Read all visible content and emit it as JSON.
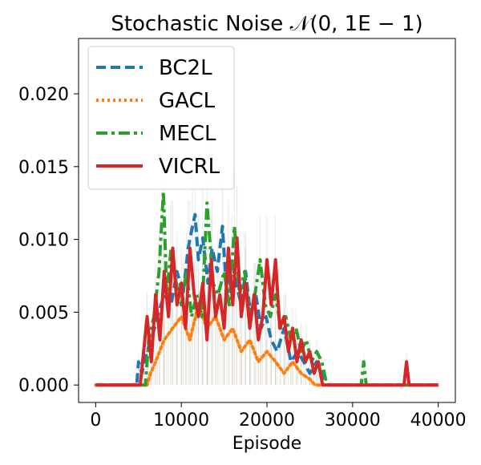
{
  "chart_data": {
    "type": "line",
    "title": "Stochastic Noise 𝒩(0, 1E − 1)",
    "xlabel": "Episode",
    "ylabel": "",
    "xlim": [
      -2000,
      42000
    ],
    "ylim": [
      -0.0012,
      0.0238
    ],
    "x_ticks": [
      0,
      10000,
      20000,
      30000,
      40000
    ],
    "x_tick_labels": [
      "0",
      "10000",
      "20000",
      "30000",
      "40000"
    ],
    "y_ticks": [
      0.0,
      0.005,
      0.01,
      0.015,
      0.02
    ],
    "y_tick_labels": [
      "0.000",
      "0.005",
      "0.010",
      "0.015",
      "0.020"
    ],
    "legend_position": "top-left",
    "series": [
      {
        "name": "BC2L",
        "color": "#1f77b4",
        "style": "dashed",
        "x": [
          0,
          4800,
          5000,
          5400,
          6000,
          6500,
          7200,
          8000,
          8800,
          9500,
          10200,
          10800,
          11300,
          11600,
          12000,
          12500,
          13100,
          13600,
          14200,
          14800,
          15300,
          15900,
          16400,
          17000,
          17500,
          18100,
          18700,
          19300,
          19900,
          20500,
          21200,
          22000,
          22800,
          23600,
          24300,
          25000,
          25800,
          26500,
          27000,
          40000
        ],
        "values": [
          0,
          0,
          0.0016,
          0.0008,
          0.0023,
          0.0031,
          0.0047,
          0.0062,
          0.0055,
          0.0078,
          0.0062,
          0.0094,
          0.0109,
          0.0117,
          0.0086,
          0.0101,
          0.007,
          0.0094,
          0.0078,
          0.0109,
          0.0062,
          0.0086,
          0.007,
          0.0055,
          0.0078,
          0.0047,
          0.0062,
          0.0039,
          0.0047,
          0.0031,
          0.0023,
          0.0039,
          0.0016,
          0.0023,
          0.0016,
          0.0008,
          0.0016,
          0.0008,
          0,
          0
        ]
      },
      {
        "name": "GACL",
        "color": "#ff7f0e",
        "style": "dotted",
        "x": [
          0,
          6000,
          6400,
          7000,
          8000,
          9000,
          10000,
          11000,
          12000,
          13000,
          14000,
          15000,
          16000,
          17000,
          18000,
          19000,
          20000,
          21000,
          22000,
          23000,
          24000,
          25000,
          25600,
          40000
        ],
        "values": [
          0,
          0,
          0.0008,
          0.0016,
          0.0031,
          0.0039,
          0.0047,
          0.0031,
          0.0055,
          0.0039,
          0.0047,
          0.0031,
          0.0039,
          0.0023,
          0.0031,
          0.0016,
          0.0023,
          0.0016,
          0.0008,
          0.0016,
          0.0008,
          0.0004,
          0,
          0
        ]
      },
      {
        "name": "MECL",
        "color": "#2ca02c",
        "style": "dashdot",
        "x": [
          0,
          5800,
          6200,
          6800,
          7400,
          7900,
          8300,
          8800,
          9400,
          10000,
          10600,
          11200,
          11800,
          12400,
          13000,
          13700,
          14300,
          15000,
          15600,
          16200,
          16800,
          17400,
          18000,
          18600,
          19200,
          19800,
          20400,
          21000,
          21600,
          22200,
          22800,
          23400,
          24000,
          24600,
          25200,
          25800,
          26400,
          27000,
          31000,
          31300,
          31600,
          40000
        ],
        "values": [
          0,
          0,
          0.0031,
          0.0047,
          0.0078,
          0.0133,
          0.0062,
          0.0094,
          0.007,
          0.0055,
          0.0078,
          0.0047,
          0.0062,
          0.0047,
          0.0125,
          0.007,
          0.0062,
          0.0078,
          0.0055,
          0.0109,
          0.0062,
          0.0078,
          0.0047,
          0.0062,
          0.0086,
          0.0055,
          0.0047,
          0.0062,
          0.0039,
          0.0047,
          0.0031,
          0.0039,
          0.0023,
          0.0031,
          0.0016,
          0.0023,
          0.0016,
          0,
          0,
          0.0016,
          0,
          0
        ]
      },
      {
        "name": "VICRL",
        "color": "#d62728",
        "style": "solid",
        "x": [
          0,
          5200,
          5600,
          6000,
          6500,
          7000,
          7500,
          8000,
          8500,
          9000,
          9500,
          10000,
          10500,
          11000,
          11500,
          12000,
          12500,
          13000,
          13500,
          14000,
          14500,
          15000,
          15500,
          16000,
          16500,
          17000,
          17500,
          18000,
          18500,
          19000,
          19500,
          20000,
          20500,
          21000,
          21500,
          22000,
          22500,
          23000,
          23500,
          24000,
          24500,
          25000,
          25500,
          26000,
          26500,
          27000,
          36000,
          36300,
          36600,
          40000
        ],
        "values": [
          0,
          0,
          0.0023,
          0.0047,
          0.0016,
          0.0062,
          0.0031,
          0.0078,
          0.0047,
          0.0094,
          0.0055,
          0.007,
          0.0039,
          0.0094,
          0.0062,
          0.0047,
          0.007,
          0.0031,
          0.0086,
          0.0047,
          0.0062,
          0.0039,
          0.0094,
          0.0055,
          0.0101,
          0.0047,
          0.007,
          0.0039,
          0.0062,
          0.0031,
          0.0047,
          0.0086,
          0.0055,
          0.0086,
          0.0039,
          0.0047,
          0.0023,
          0.0039,
          0.0016,
          0.0031,
          0.0016,
          0.0023,
          0.0008,
          0.0016,
          0,
          0,
          0,
          0.0016,
          0,
          0
        ]
      }
    ]
  }
}
